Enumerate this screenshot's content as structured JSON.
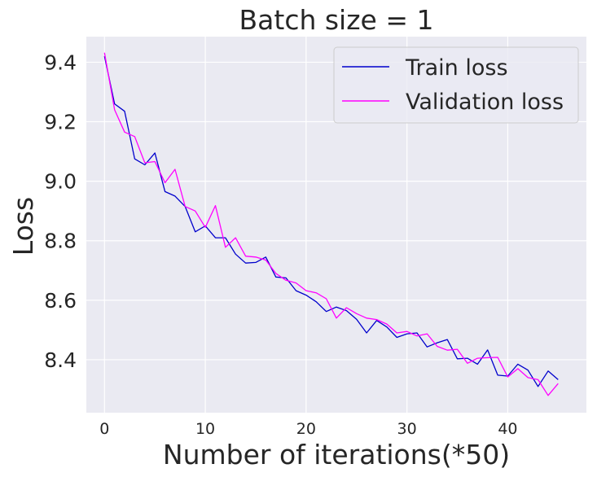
{
  "chart_data": {
    "type": "line",
    "title": "Batch size = 1",
    "xlabel": "Number of iterations(*50)",
    "ylabel": "Loss",
    "xlim": [
      -1.8,
      47.8
    ],
    "ylim": [
      8.222,
      9.486
    ],
    "xticks": [
      0,
      10,
      20,
      30,
      40
    ],
    "yticks": [
      8.4,
      8.6,
      8.8,
      9.0,
      9.2,
      9.4
    ],
    "ytick_labels": [
      "8.4",
      "8.6",
      "8.8",
      "9.0",
      "9.2",
      "9.4"
    ],
    "grid": true,
    "legend_position": "top-right",
    "x": [
      0,
      1,
      2,
      3,
      4,
      5,
      6,
      7,
      8,
      9,
      10,
      11,
      12,
      13,
      14,
      15,
      16,
      17,
      18,
      19,
      20,
      21,
      22,
      23,
      24,
      25,
      26,
      27,
      28,
      29,
      30,
      31,
      32,
      33,
      34,
      35,
      36,
      37,
      38,
      39,
      40,
      41,
      42,
      43,
      44,
      45
    ],
    "series": [
      {
        "name": "Train loss",
        "color": "#0000cc",
        "values": [
          9.42,
          9.26,
          9.235,
          9.075,
          9.055,
          9.095,
          8.965,
          8.95,
          8.915,
          8.83,
          8.85,
          8.81,
          8.81,
          8.755,
          8.725,
          8.727,
          8.745,
          8.678,
          8.675,
          8.632,
          8.617,
          8.595,
          8.562,
          8.577,
          8.565,
          8.536,
          8.49,
          8.532,
          8.51,
          8.475,
          8.487,
          8.49,
          8.443,
          8.457,
          8.468,
          8.403,
          8.405,
          8.385,
          8.433,
          8.348,
          8.345,
          8.385,
          8.365,
          8.31,
          8.362,
          8.333
        ]
      },
      {
        "name": "Validation loss",
        "color": "#ff00ff",
        "values": [
          9.432,
          9.24,
          9.165,
          9.15,
          9.062,
          9.066,
          8.995,
          9.04,
          8.915,
          8.9,
          8.845,
          8.918,
          8.778,
          8.81,
          8.748,
          8.745,
          8.735,
          8.69,
          8.667,
          8.658,
          8.632,
          8.625,
          8.605,
          8.54,
          8.575,
          8.555,
          8.54,
          8.535,
          8.52,
          8.49,
          8.495,
          8.48,
          8.487,
          8.445,
          8.432,
          8.435,
          8.388,
          8.405,
          8.407,
          8.408,
          8.342,
          8.37,
          8.34,
          8.333,
          8.28,
          8.32
        ]
      }
    ]
  }
}
